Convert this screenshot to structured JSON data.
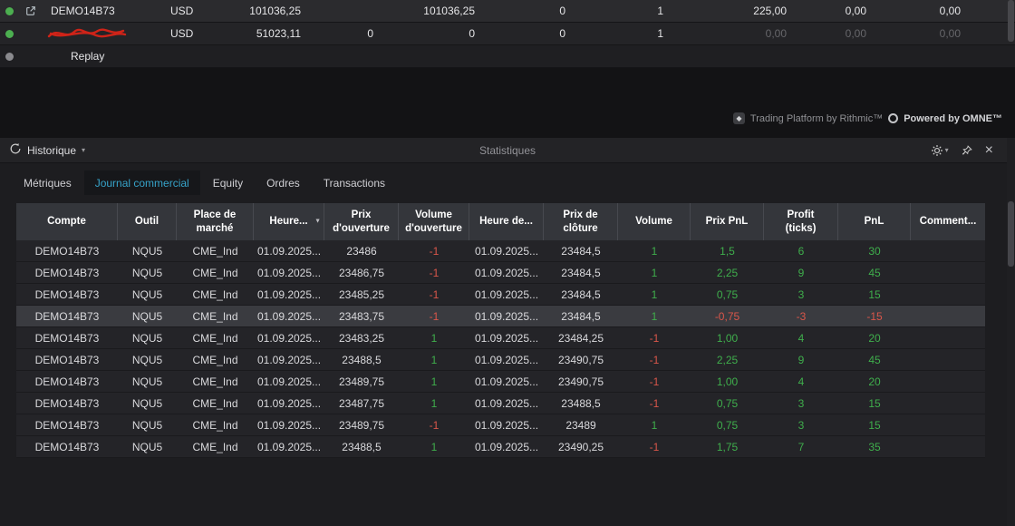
{
  "theme": {
    "green": "#3fae4c",
    "red": "#d9564a",
    "accent": "#36a3c9"
  },
  "top_panel": {
    "rows": [
      {
        "name": "DEMO14B73",
        "dot_color": "#4caf50",
        "link_icon": true,
        "redacted": false,
        "indent": false,
        "currency": "USD",
        "values": [
          "101036,25",
          "",
          "101036,25",
          "0",
          "1",
          "225,00",
          "0,00",
          "0,00"
        ],
        "dim": []
      },
      {
        "name": "",
        "dot_color": "#4caf50",
        "link_icon": false,
        "redacted": true,
        "indent": false,
        "currency": "USD",
        "values": [
          "51023,11",
          "0",
          "0",
          "0",
          "1",
          "0,00",
          "0,00",
          "0,00"
        ],
        "dim": [
          5,
          6,
          7
        ]
      },
      {
        "name": "Replay",
        "dot_color": "#8a8a8e",
        "link_icon": false,
        "redacted": false,
        "indent": true,
        "currency": "",
        "values": [
          "",
          "",
          "",
          "",
          "",
          "",
          "",
          ""
        ],
        "dim": []
      }
    ],
    "footer": {
      "rithmic": "Trading Platform by Rithmic™",
      "omne": "Powered by OMNE™"
    }
  },
  "stats_panel": {
    "left_menu": "Historique",
    "title": "Statistiques",
    "tabs": [
      {
        "label": "Métriques",
        "active": false
      },
      {
        "label": "Journal commercial",
        "active": true
      },
      {
        "label": "Equity",
        "active": false
      },
      {
        "label": "Ordres",
        "active": false
      },
      {
        "label": "Transactions",
        "active": false
      }
    ],
    "table": {
      "columns": [
        {
          "label": "Compte"
        },
        {
          "label": "Outil"
        },
        {
          "label": "Place de marché"
        },
        {
          "label": "Heure...",
          "sort": true
        },
        {
          "label": "Prix d'ouverture"
        },
        {
          "label": "Volume d'ouverture"
        },
        {
          "label": "Heure de..."
        },
        {
          "label": "Prix de clôture"
        },
        {
          "label": "Volume"
        },
        {
          "label": "Prix PnL"
        },
        {
          "label": "Profit (ticks)"
        },
        {
          "label": "PnL"
        },
        {
          "label": "Comment..."
        }
      ],
      "signed_columns": [
        5,
        8,
        9,
        10,
        11
      ],
      "rows": [
        {
          "highlight": false,
          "cells": [
            "DEMO14B73",
            "NQU5",
            "CME_Ind",
            "01.09.2025...",
            "23486",
            "-1",
            "01.09.2025...",
            "23484,5",
            "1",
            "1,5",
            "6",
            "30",
            ""
          ]
        },
        {
          "highlight": false,
          "cells": [
            "DEMO14B73",
            "NQU5",
            "CME_Ind",
            "01.09.2025...",
            "23486,75",
            "-1",
            "01.09.2025...",
            "23484,5",
            "1",
            "2,25",
            "9",
            "45",
            ""
          ]
        },
        {
          "highlight": false,
          "cells": [
            "DEMO14B73",
            "NQU5",
            "CME_Ind",
            "01.09.2025...",
            "23485,25",
            "-1",
            "01.09.2025...",
            "23484,5",
            "1",
            "0,75",
            "3",
            "15",
            ""
          ]
        },
        {
          "highlight": true,
          "cells": [
            "DEMO14B73",
            "NQU5",
            "CME_Ind",
            "01.09.2025...",
            "23483,75",
            "-1",
            "01.09.2025...",
            "23484,5",
            "1",
            "-0,75",
            "-3",
            "-15",
            ""
          ]
        },
        {
          "highlight": false,
          "cells": [
            "DEMO14B73",
            "NQU5",
            "CME_Ind",
            "01.09.2025...",
            "23483,25",
            "1",
            "01.09.2025...",
            "23484,25",
            "-1",
            "1,00",
            "4",
            "20",
            ""
          ]
        },
        {
          "highlight": false,
          "cells": [
            "DEMO14B73",
            "NQU5",
            "CME_Ind",
            "01.09.2025...",
            "23488,5",
            "1",
            "01.09.2025...",
            "23490,75",
            "-1",
            "2,25",
            "9",
            "45",
            ""
          ]
        },
        {
          "highlight": false,
          "cells": [
            "DEMO14B73",
            "NQU5",
            "CME_Ind",
            "01.09.2025...",
            "23489,75",
            "1",
            "01.09.2025...",
            "23490,75",
            "-1",
            "1,00",
            "4",
            "20",
            ""
          ]
        },
        {
          "highlight": false,
          "cells": [
            "DEMO14B73",
            "NQU5",
            "CME_Ind",
            "01.09.2025...",
            "23487,75",
            "1",
            "01.09.2025...",
            "23488,5",
            "-1",
            "0,75",
            "3",
            "15",
            ""
          ]
        },
        {
          "highlight": false,
          "cells": [
            "DEMO14B73",
            "NQU5",
            "CME_Ind",
            "01.09.2025...",
            "23489,75",
            "-1",
            "01.09.2025...",
            "23489",
            "1",
            "0,75",
            "3",
            "15",
            ""
          ]
        },
        {
          "highlight": false,
          "cells": [
            "DEMO14B73",
            "NQU5",
            "CME_Ind",
            "01.09.2025...",
            "23488,5",
            "1",
            "01.09.2025...",
            "23490,25",
            "-1",
            "1,75",
            "7",
            "35",
            ""
          ]
        }
      ]
    }
  }
}
